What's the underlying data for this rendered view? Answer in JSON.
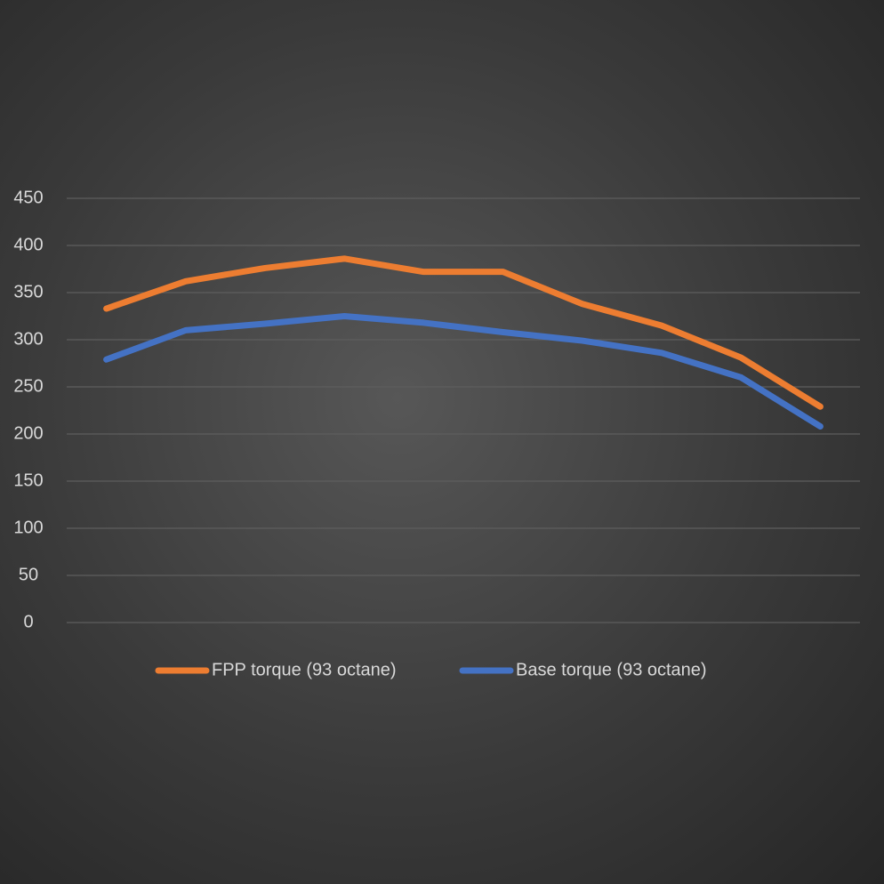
{
  "chart_data": {
    "type": "line",
    "categories": [
      null,
      null,
      null,
      null,
      null,
      null,
      null,
      null,
      null,
      null
    ],
    "series": [
      {
        "name": "FPP torque (93 octane)",
        "color": "#ed7d31",
        "values": [
          333,
          362,
          376,
          386,
          372,
          372,
          338,
          315,
          281,
          229
        ]
      },
      {
        "name": "Base torque (93 octane)",
        "color": "#4472c4",
        "values": [
          279,
          310,
          317,
          325,
          318,
          308,
          299,
          286,
          260,
          208
        ]
      }
    ],
    "ylim": [
      0,
      450
    ],
    "yticks": [
      0,
      50,
      100,
      150,
      200,
      250,
      300,
      350,
      400,
      450
    ],
    "grid": true,
    "legend": "bottom"
  }
}
